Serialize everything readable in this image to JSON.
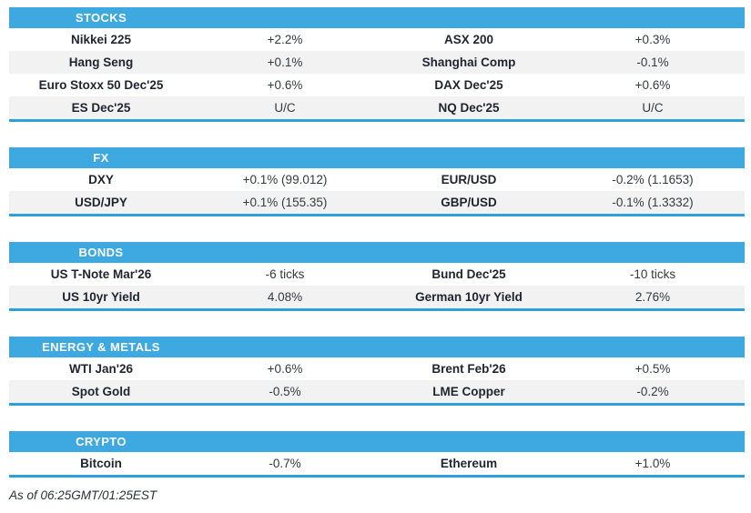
{
  "palette": {
    "header_blue": "#3ea8e0",
    "section_border_blue": "#2e9fdb",
    "row_alt_gray": "#f2f2f2",
    "label_text": "#1f2430",
    "value_text": "#343a40"
  },
  "sections": [
    {
      "title": "STOCKS",
      "rows": [
        {
          "l_label": "Nikkei 225",
          "l_value": "+2.2%",
          "r_label": "ASX 200",
          "r_value": "+0.3%"
        },
        {
          "l_label": "Hang Seng",
          "l_value": "+0.1%",
          "r_label": "Shanghai Comp",
          "r_value": "-0.1%"
        },
        {
          "l_label": "Euro Stoxx 50 Dec'25",
          "l_value": "+0.6%",
          "r_label": "DAX Dec'25",
          "r_value": "+0.6%"
        },
        {
          "l_label": "ES Dec'25",
          "l_value": "U/C",
          "r_label": "NQ Dec'25",
          "r_value": "U/C"
        }
      ]
    },
    {
      "title": "FX",
      "rows": [
        {
          "l_label": "DXY",
          "l_value": "+0.1% (99.012)",
          "r_label": "EUR/USD",
          "r_value": "-0.2% (1.1653)"
        },
        {
          "l_label": "USD/JPY",
          "l_value": "+0.1% (155.35)",
          "r_label": "GBP/USD",
          "r_value": "-0.1% (1.3332)"
        }
      ]
    },
    {
      "title": "BONDS",
      "rows": [
        {
          "l_label": "US T-Note Mar'26",
          "l_value": "-6 ticks",
          "r_label": "Bund Dec'25",
          "r_value": "-10 ticks"
        },
        {
          "l_label": "US 10yr Yield",
          "l_value": "4.08%",
          "r_label": "German 10yr Yield",
          "r_value": "2.76%"
        }
      ]
    },
    {
      "title": "ENERGY & METALS",
      "rows": [
        {
          "l_label": "WTI Jan'26",
          "l_value": "+0.6%",
          "r_label": "Brent Feb'26",
          "r_value": "+0.5%"
        },
        {
          "l_label": "Spot Gold",
          "l_value": "-0.5%",
          "r_label": "LME Copper",
          "r_value": "-0.2%"
        }
      ]
    },
    {
      "title": "CRYPTO",
      "rows": [
        {
          "l_label": "Bitcoin",
          "l_value": "-0.7%",
          "r_label": "Ethereum",
          "r_value": "+1.0%"
        }
      ]
    }
  ],
  "footer": {
    "as_of": "As of 06:25GMT/01:25EST"
  }
}
